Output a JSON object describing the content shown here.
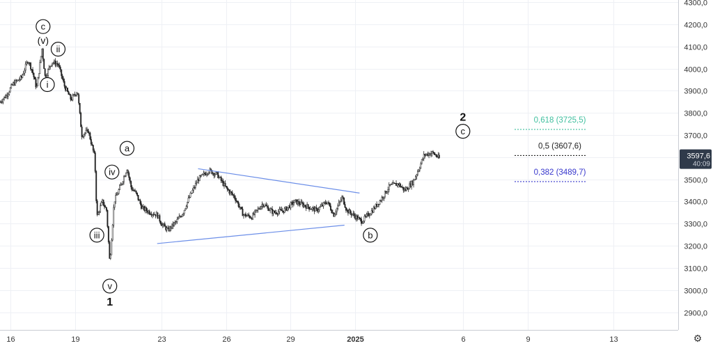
{
  "chart_data": {
    "type": "candlestick",
    "xlabel": "",
    "ylabel": "",
    "grid": true,
    "x_ticks": [
      {
        "label": "16",
        "bold": false,
        "x": 0
      },
      {
        "label": "19",
        "bold": false,
        "x": 3
      },
      {
        "label": "23",
        "bold": false,
        "x": 7
      },
      {
        "label": "26",
        "bold": false,
        "x": 10
      },
      {
        "label": "29",
        "bold": false,
        "x": 13
      },
      {
        "label": "2025",
        "bold": true,
        "x": 16
      },
      {
        "label": "6",
        "bold": false,
        "x": 21
      },
      {
        "label": "9",
        "bold": false,
        "x": 24
      },
      {
        "label": "13",
        "bold": false,
        "x": 28
      }
    ],
    "y_ticks": [
      "4300,0",
      "4200,0",
      "4100,0",
      "4000,0",
      "3900,0",
      "3800,0",
      "3700,0",
      "3600,0",
      "3500,0",
      "3400,0",
      "3300,0",
      "3200,0",
      "3100,0",
      "3000,0",
      "2900,0"
    ],
    "y_tick_values": [
      4300,
      4200,
      4100,
      4000,
      3900,
      3800,
      3700,
      3600,
      3500,
      3400,
      3300,
      3200,
      3100,
      3000,
      2900
    ],
    "ylim": [
      2820,
      4310
    ],
    "xlim": [
      -0.5,
      31
    ],
    "price_path": [
      [
        -0.5,
        3850
      ],
      [
        -0.2,
        3880
      ],
      [
        0.1,
        3930
      ],
      [
        0.5,
        3960
      ],
      [
        0.8,
        4040
      ],
      [
        1.0,
        3990
      ],
      [
        1.2,
        3910
      ],
      [
        1.45,
        4090
      ],
      [
        1.6,
        3960
      ],
      [
        1.9,
        4030
      ],
      [
        2.2,
        4020
      ],
      [
        2.5,
        3920
      ],
      [
        2.8,
        3860
      ],
      [
        3.1,
        3900
      ],
      [
        3.3,
        3700
      ],
      [
        3.6,
        3720
      ],
      [
        3.9,
        3600
      ],
      [
        4.0,
        3330
      ],
      [
        4.25,
        3400
      ],
      [
        4.45,
        3360
      ],
      [
        4.6,
        3120
      ],
      [
        4.8,
        3400
      ],
      [
        5.1,
        3470
      ],
      [
        5.4,
        3550
      ],
      [
        5.6,
        3460
      ],
      [
        5.8,
        3440
      ],
      [
        6.1,
        3370
      ],
      [
        6.5,
        3350
      ],
      [
        6.8,
        3340
      ],
      [
        7.0,
        3300
      ],
      [
        7.3,
        3270
      ],
      [
        7.7,
        3310
      ],
      [
        8.0,
        3350
      ],
      [
        8.3,
        3420
      ],
      [
        8.7,
        3500
      ],
      [
        9.2,
        3540
      ],
      [
        9.6,
        3520
      ],
      [
        10.0,
        3460
      ],
      [
        10.4,
        3420
      ],
      [
        10.8,
        3340
      ],
      [
        11.2,
        3330
      ],
      [
        11.7,
        3390
      ],
      [
        12.2,
        3350
      ],
      [
        12.7,
        3360
      ],
      [
        13.2,
        3400
      ],
      [
        13.7,
        3380
      ],
      [
        14.2,
        3360
      ],
      [
        14.7,
        3400
      ],
      [
        15.0,
        3340
      ],
      [
        15.4,
        3420
      ],
      [
        15.6,
        3360
      ],
      [
        15.9,
        3340
      ],
      [
        16.3,
        3310
      ],
      [
        16.8,
        3360
      ],
      [
        17.2,
        3410
      ],
      [
        17.6,
        3470
      ],
      [
        18.0,
        3480
      ],
      [
        18.3,
        3450
      ],
      [
        18.7,
        3490
      ],
      [
        19.0,
        3560
      ],
      [
        19.2,
        3610
      ],
      [
        19.6,
        3620
      ],
      [
        19.9,
        3595
      ]
    ],
    "triangle_lines": [
      {
        "from": [
          8.7,
          3548
        ],
        "to": [
          16.2,
          3438
        ]
      },
      {
        "from": [
          6.8,
          3210
        ],
        "to": [
          15.5,
          3293
        ]
      }
    ],
    "wave_labels": [
      {
        "text": "c",
        "x": 1.5,
        "y": 4190,
        "circled": true
      },
      {
        "text": "(v)",
        "x": 1.5,
        "y": 4128,
        "circled": false
      },
      {
        "text": "ii",
        "x": 2.2,
        "y": 4088,
        "circled": true
      },
      {
        "text": "i",
        "x": 1.7,
        "y": 3928,
        "circled": true
      },
      {
        "text": "a",
        "x": 5.4,
        "y": 3640,
        "circled": true
      },
      {
        "text": "iv",
        "x": 4.7,
        "y": 3533,
        "circled": true
      },
      {
        "text": "iii",
        "x": 4.0,
        "y": 3248,
        "circled": true
      },
      {
        "text": "v",
        "x": 4.6,
        "y": 3018,
        "circled": true
      },
      {
        "text": "1",
        "x": 4.6,
        "y": 2945,
        "circled": false,
        "bold": true
      },
      {
        "text": "b",
        "x": 16.7,
        "y": 3248,
        "circled": true
      },
      {
        "text": "2",
        "x": 21.0,
        "y": 3780,
        "circled": false,
        "bold": true
      },
      {
        "text": "c",
        "x": 21.0,
        "y": 3717,
        "circled": true
      }
    ],
    "fib_levels": [
      {
        "label": "0,618 (3725,5)",
        "value": 3725.5,
        "color": "#3fbf9e"
      },
      {
        "label": "0,5 (3607,6)",
        "value": 3607.6,
        "color": "#222222"
      },
      {
        "label": "0,382 (3489,7)",
        "value": 3489.7,
        "color": "#3636cc"
      }
    ],
    "fib_x_range": [
      23.4,
      26.7
    ],
    "last_price": {
      "label": "3597,6",
      "value": 3597.6,
      "countdown": "40:09"
    }
  },
  "colors": {
    "grid": "#eef0f5",
    "axis_text": "#333333",
    "candle": "#222222",
    "triangle": "#6b8ee8",
    "price_tag": "#2f3a4a"
  },
  "icons": {
    "settings": "gear-icon"
  }
}
